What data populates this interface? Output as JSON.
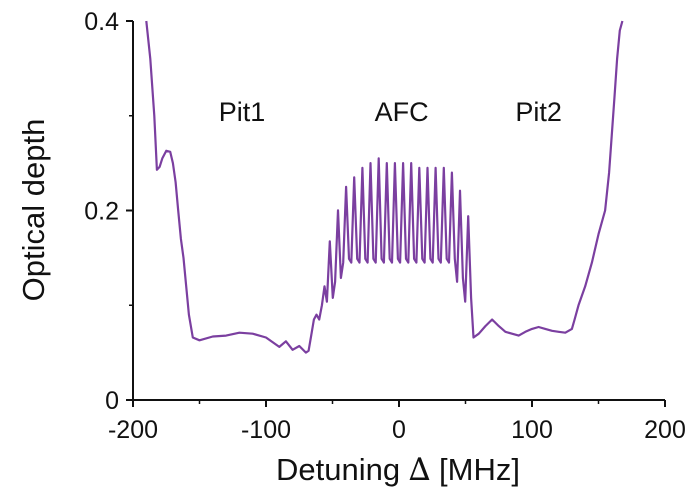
{
  "chart_data": {
    "type": "line",
    "xlabel": "Detuning ∆ [MHz]",
    "ylabel": "Optical depth",
    "xlim": [
      -200,
      200
    ],
    "ylim": [
      0,
      0.4
    ],
    "grid": false,
    "x_ticks": [
      -200,
      -100,
      0,
      100,
      200
    ],
    "x_tick_labels": [
      "-200",
      "-100",
      "0",
      "100",
      "200"
    ],
    "y_ticks": [
      0,
      0.2,
      0.4
    ],
    "y_tick_labels": [
      "0",
      "0.2",
      "0.4"
    ],
    "y_minor_ticks": [
      0.1,
      0.3
    ],
    "annotations": [
      {
        "text": "Pit1",
        "x": -118,
        "y": 0.305
      },
      {
        "text": "AFC",
        "x": 2,
        "y": 0.305
      },
      {
        "text": "Pit2",
        "x": 105,
        "y": 0.305
      }
    ],
    "series": [
      {
        "color": "#7b3fa0",
        "x": [
          -190,
          -187,
          -184,
          -182,
          -180,
          -178,
          -175,
          -172,
          -170,
          -168,
          -166,
          -164,
          -162,
          -160,
          -158,
          -155,
          -150,
          -140,
          -130,
          -120,
          -110,
          -100,
          -90,
          -85,
          -80,
          -75,
          -70,
          -68,
          -66,
          -64,
          -62,
          -60,
          -58,
          -56
        ],
        "y": [
          0.4,
          0.36,
          0.3,
          0.243,
          0.246,
          0.255,
          0.263,
          0.262,
          0.25,
          0.23,
          0.2,
          0.17,
          0.15,
          0.12,
          0.09,
          0.066,
          0.063,
          0.067,
          0.068,
          0.071,
          0.07,
          0.066,
          0.056,
          0.062,
          0.053,
          0.057,
          0.05,
          0.052,
          0.068,
          0.085,
          0.09,
          0.085,
          0.1,
          0.12
        ]
      },
      {
        "color": "#7b3fa0",
        "afc_comb": true,
        "x_start": -56,
        "x_end": 56,
        "teeth_spacing": 4.8,
        "flat_start": -40,
        "flat_end": 40,
        "edge_ramp_width": 16,
        "edge_base": 0.09,
        "flat_base": 0.145,
        "center_base": 0.158,
        "peak_tops": [
          0.2,
          0.215,
          0.225,
          0.235,
          0.245,
          0.25,
          0.255,
          0.25,
          0.25,
          0.25,
          0.25,
          0.245,
          0.245,
          0.245,
          0.245,
          0.24,
          0.24,
          0.24
        ]
      },
      {
        "color": "#7b3fa0",
        "x": [
          56,
          60,
          65,
          70,
          75,
          80,
          85,
          90,
          95,
          100,
          105,
          110,
          115,
          120,
          125,
          130,
          132,
          135,
          140,
          145,
          150,
          155,
          158,
          160,
          162,
          164,
          166,
          168
        ],
        "y": [
          0.066,
          0.07,
          0.078,
          0.085,
          0.078,
          0.072,
          0.07,
          0.068,
          0.072,
          0.075,
          0.077,
          0.075,
          0.073,
          0.072,
          0.071,
          0.075,
          0.085,
          0.1,
          0.12,
          0.145,
          0.175,
          0.2,
          0.24,
          0.28,
          0.32,
          0.36,
          0.39,
          0.4
        ]
      }
    ]
  }
}
